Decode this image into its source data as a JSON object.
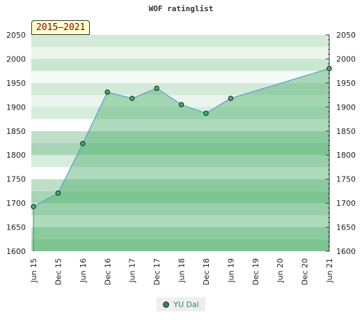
{
  "chart_data": {
    "type": "line",
    "title": "WOF ratinglist",
    "badge": "2015–2021",
    "categories": [
      "Jun 15",
      "Dec 15",
      "Jun 16",
      "Dec 16",
      "Jun 17",
      "Dec 17",
      "Jun 18",
      "Dec 18",
      "Jun 19",
      "Dec 19",
      "Jun 20",
      "Dec 20",
      "Jun 21"
    ],
    "series": [
      {
        "name": "YU Dal",
        "color": "#2e8b57",
        "points": [
          {
            "x": "Jun 15",
            "y": 1693
          },
          {
            "x": "Dec 15",
            "y": 1721
          },
          {
            "x": "Jun 16",
            "y": 1824
          },
          {
            "x": "Dec 16",
            "y": 1931
          },
          {
            "x": "Jun 17",
            "y": 1918
          },
          {
            "x": "Dec 17",
            "y": 1939
          },
          {
            "x": "Jun 18",
            "y": 1905
          },
          {
            "x": "Dec 18",
            "y": 1887
          },
          {
            "x": "Jun 19",
            "y": 1918
          },
          {
            "x": "Jun 21",
            "y": 1980
          }
        ]
      }
    ],
    "yticks": [
      1600,
      1650,
      1700,
      1750,
      1800,
      1850,
      1900,
      1950,
      2000,
      2050
    ],
    "ylim": [
      1600,
      2050
    ],
    "grid": true,
    "legend_position": "bottom-center"
  }
}
